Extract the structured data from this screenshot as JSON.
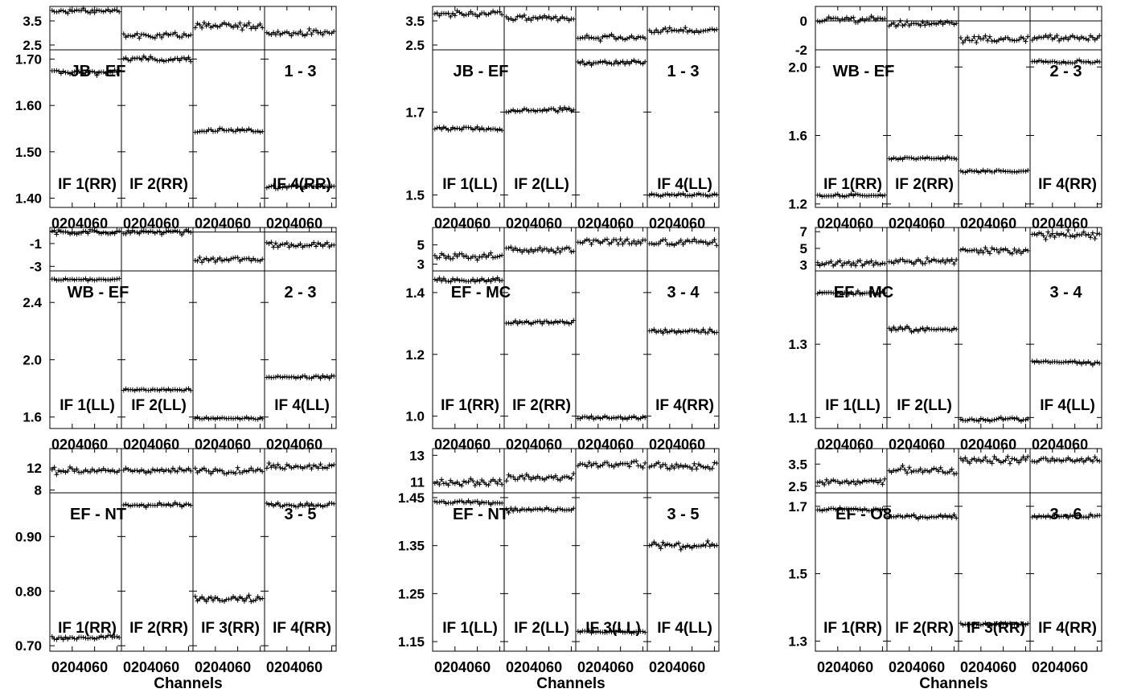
{
  "chart_data": {
    "type": "scatter",
    "xlabel": "Channels",
    "x_ticks": [
      "0",
      "20",
      "40",
      "60"
    ],
    "x_range": [
      0,
      64
    ],
    "phase_unit": "degrees",
    "amplitude_unit": "",
    "plots": [
      {
        "baseline": "JB - EF",
        "pair": "1 - 3",
        "phase_ticks": [
          "3.5",
          "2.5"
        ],
        "phase_tick_values": [
          3.5,
          2.5
        ],
        "phase_range": [
          2.3,
          4.1
        ],
        "amp_ticks": [
          "1.70",
          "1.60",
          "1.50",
          "1.40"
        ],
        "amp_tick_values": [
          1.7,
          1.6,
          1.5,
          1.4
        ],
        "amp_range": [
          1.38,
          1.72
        ],
        "ifs": [
          {
            "label": "IF 1(RR)",
            "phase": 3.9,
            "amp": 1.672,
            "amp_noise": 0.004,
            "phase_noise": 0.08
          },
          {
            "label": "IF 2(RR)",
            "phase": 2.9,
            "amp": 1.7,
            "amp_noise": 0.004,
            "phase_noise": 0.08
          },
          {
            "label": "",
            "phase": 3.3,
            "amp": 1.545,
            "amp_noise": 0.004,
            "phase_noise": 0.1
          },
          {
            "label": "IF 4(RR)",
            "phase": 3.0,
            "amp": 1.425,
            "amp_noise": 0.003,
            "phase_noise": 0.1
          }
        ]
      },
      {
        "baseline": "JB - EF",
        "pair": "1 - 3",
        "phase_ticks": [
          "3.5",
          "2.5"
        ],
        "phase_tick_values": [
          3.5,
          2.5
        ],
        "phase_range": [
          2.3,
          4.1
        ],
        "amp_ticks": [
          "1.7",
          "1.5"
        ],
        "amp_tick_values": [
          1.7,
          1.5
        ],
        "amp_range": [
          1.47,
          1.85
        ],
        "ifs": [
          {
            "label": "IF 1(LL)",
            "phase": 3.8,
            "amp": 1.66,
            "amp_noise": 0.004,
            "phase_noise": 0.08
          },
          {
            "label": "IF 2(LL)",
            "phase": 3.6,
            "amp": 1.705,
            "amp_noise": 0.004,
            "phase_noise": 0.08
          },
          {
            "label": "",
            "phase": 2.8,
            "amp": 1.82,
            "amp_noise": 0.004,
            "phase_noise": 0.08
          },
          {
            "label": "IF 4(LL)",
            "phase": 3.1,
            "amp": 1.5,
            "amp_noise": 0.003,
            "phase_noise": 0.08
          }
        ]
      },
      {
        "baseline": "WB - EF",
        "pair": "2 - 3",
        "phase_ticks": [
          "0",
          "-2"
        ],
        "phase_tick_values": [
          0,
          -2
        ],
        "phase_range": [
          -2.0,
          1.0
        ],
        "amp_ticks": [
          "2.0",
          "1.6",
          "1.2"
        ],
        "amp_tick_values": [
          2.0,
          1.6,
          1.2
        ],
        "amp_range": [
          1.18,
          2.1
        ],
        "ifs": [
          {
            "label": "IF 1(RR)",
            "phase": 0.1,
            "amp": 1.25,
            "amp_noise": 0.006,
            "phase_noise": 0.15
          },
          {
            "label": "IF 2(RR)",
            "phase": -0.2,
            "amp": 1.465,
            "amp_noise": 0.006,
            "phase_noise": 0.15
          },
          {
            "label": "",
            "phase": -1.3,
            "amp": 1.39,
            "amp_noise": 0.006,
            "phase_noise": 0.2
          },
          {
            "label": "IF 4(RR)",
            "phase": -1.2,
            "amp": 2.03,
            "amp_noise": 0.006,
            "phase_noise": 0.2
          }
        ]
      },
      {
        "baseline": "WB - EF",
        "pair": "2 - 3",
        "phase_ticks": [
          "-1",
          "-3"
        ],
        "phase_tick_values": [
          -1,
          -3
        ],
        "phase_range": [
          -3.4,
          0.4
        ],
        "amp_ticks": [
          "2.4",
          "2.0",
          "1.6"
        ],
        "amp_tick_values": [
          2.4,
          2.0,
          1.6
        ],
        "amp_range": [
          1.52,
          2.62
        ],
        "ifs": [
          {
            "label": "IF 1(LL)",
            "phase": 0.0,
            "amp": 2.56,
            "amp_noise": 0.006,
            "phase_noise": 0.15
          },
          {
            "label": "IF 2(LL)",
            "phase": 0.0,
            "amp": 1.79,
            "amp_noise": 0.006,
            "phase_noise": 0.15
          },
          {
            "label": "",
            "phase": -2.4,
            "amp": 1.59,
            "amp_noise": 0.006,
            "phase_noise": 0.2
          },
          {
            "label": "IF 4(LL)",
            "phase": -1.1,
            "amp": 1.88,
            "amp_noise": 0.006,
            "phase_noise": 0.2
          }
        ]
      },
      {
        "baseline": "EF - MC",
        "pair": "3 - 4",
        "phase_ticks": [
          "5",
          "3"
        ],
        "phase_tick_values": [
          5,
          3
        ],
        "phase_range": [
          2.3,
          6.8
        ],
        "amp_ticks": [
          "1.4",
          "1.2",
          "1.0"
        ],
        "amp_tick_values": [
          1.4,
          1.2,
          1.0
        ],
        "amp_range": [
          0.96,
          1.47
        ],
        "ifs": [
          {
            "label": "IF 1(RR)",
            "phase": 3.8,
            "amp": 1.44,
            "amp_noise": 0.005,
            "phase_noise": 0.3
          },
          {
            "label": "IF 2(RR)",
            "phase": 4.5,
            "amp": 1.305,
            "amp_noise": 0.005,
            "phase_noise": 0.3
          },
          {
            "label": "",
            "phase": 5.3,
            "amp": 0.995,
            "amp_noise": 0.005,
            "phase_noise": 0.3
          },
          {
            "label": "IF 4(RR)",
            "phase": 5.2,
            "amp": 1.275,
            "amp_noise": 0.005,
            "phase_noise": 0.3
          }
        ]
      },
      {
        "baseline": "EF - MC",
        "pair": "3 - 4",
        "phase_ticks": [
          "7",
          "5",
          "3"
        ],
        "phase_tick_values": [
          7,
          5,
          3
        ],
        "phase_range": [
          2.3,
          7.5
        ],
        "amp_ticks": [
          "1.3",
          "1.1"
        ],
        "amp_tick_values": [
          1.3,
          1.1
        ],
        "amp_range": [
          1.07,
          1.5
        ],
        "ifs": [
          {
            "label": "IF 1(LL)",
            "phase": 3.2,
            "amp": 1.44,
            "amp_noise": 0.005,
            "phase_noise": 0.3
          },
          {
            "label": "IF 2(LL)",
            "phase": 3.5,
            "amp": 1.34,
            "amp_noise": 0.005,
            "phase_noise": 0.3
          },
          {
            "label": "",
            "phase": 4.8,
            "amp": 1.095,
            "amp_noise": 0.004,
            "phase_noise": 0.3
          },
          {
            "label": "IF 4(LL)",
            "phase": 6.6,
            "amp": 1.25,
            "amp_noise": 0.005,
            "phase_noise": 0.3
          }
        ]
      },
      {
        "baseline": "EF - NT",
        "pair": "3 - 5",
        "phase_ticks": [
          "12",
          "8"
        ],
        "phase_tick_values": [
          12,
          8
        ],
        "phase_range": [
          7.5,
          15.5
        ],
        "amp_ticks": [
          "0.90",
          "0.80",
          "0.70"
        ],
        "amp_tick_values": [
          0.9,
          0.8,
          0.7
        ],
        "amp_range": [
          0.69,
          0.98
        ],
        "ifs": [
          {
            "label": "IF 1(RR)",
            "phase": 11.5,
            "amp": 0.715,
            "amp_noise": 0.003,
            "phase_noise": 0.4
          },
          {
            "label": "IF 2(RR)",
            "phase": 11.5,
            "amp": 0.958,
            "amp_noise": 0.003,
            "phase_noise": 0.4
          },
          {
            "label": "IF 3(RR)",
            "phase": 11.5,
            "amp": 0.787,
            "amp_noise": 0.004,
            "phase_noise": 0.4
          },
          {
            "label": "IF 4(RR)",
            "phase": 12.3,
            "amp": 0.958,
            "amp_noise": 0.003,
            "phase_noise": 0.4
          }
        ]
      },
      {
        "baseline": "EF - NT",
        "pair": "3 - 5",
        "phase_ticks": [
          "13",
          "11"
        ],
        "phase_tick_values": [
          13,
          11
        ],
        "phase_range": [
          10.2,
          13.5
        ],
        "amp_ticks": [
          "1.45",
          "1.35",
          "1.25",
          "1.15"
        ],
        "amp_tick_values": [
          1.45,
          1.35,
          1.25,
          1.15
        ],
        "amp_range": [
          1.13,
          1.46
        ],
        "ifs": [
          {
            "label": "IF 1(LL)",
            "phase": 11.0,
            "amp": 1.44,
            "amp_noise": 0.003,
            "phase_noise": 0.2
          },
          {
            "label": "IF 2(LL)",
            "phase": 11.3,
            "amp": 1.425,
            "amp_noise": 0.004,
            "phase_noise": 0.2
          },
          {
            "label": "IF 3(LL)",
            "phase": 12.3,
            "amp": 1.17,
            "amp_noise": 0.002,
            "phase_noise": 0.2
          },
          {
            "label": "IF 4(LL)",
            "phase": 12.2,
            "amp": 1.35,
            "amp_noise": 0.005,
            "phase_noise": 0.2
          }
        ]
      },
      {
        "baseline": "EF - O8",
        "pair": "3 - 6",
        "phase_ticks": [
          "3.5",
          "2.5"
        ],
        "phase_tick_values": [
          3.5,
          2.5
        ],
        "phase_range": [
          2.2,
          4.2
        ],
        "amp_ticks": [
          "1.7",
          "1.5",
          "1.3"
        ],
        "amp_tick_values": [
          1.7,
          1.5,
          1.3
        ],
        "amp_range": [
          1.27,
          1.74
        ],
        "ifs": [
          {
            "label": "IF 1(RR)",
            "phase": 2.7,
            "amp": 1.69,
            "amp_noise": 0.004,
            "phase_noise": 0.12
          },
          {
            "label": "IF 2(RR)",
            "phase": 3.2,
            "amp": 1.67,
            "amp_noise": 0.004,
            "phase_noise": 0.12
          },
          {
            "label": "IF 3(RR)",
            "phase": 3.7,
            "amp": 1.35,
            "amp_noise": 0.003,
            "phase_noise": 0.12
          },
          {
            "label": "IF 4(RR)",
            "phase": 3.7,
            "amp": 1.67,
            "amp_noise": 0.004,
            "phase_noise": 0.12
          }
        ]
      }
    ]
  }
}
